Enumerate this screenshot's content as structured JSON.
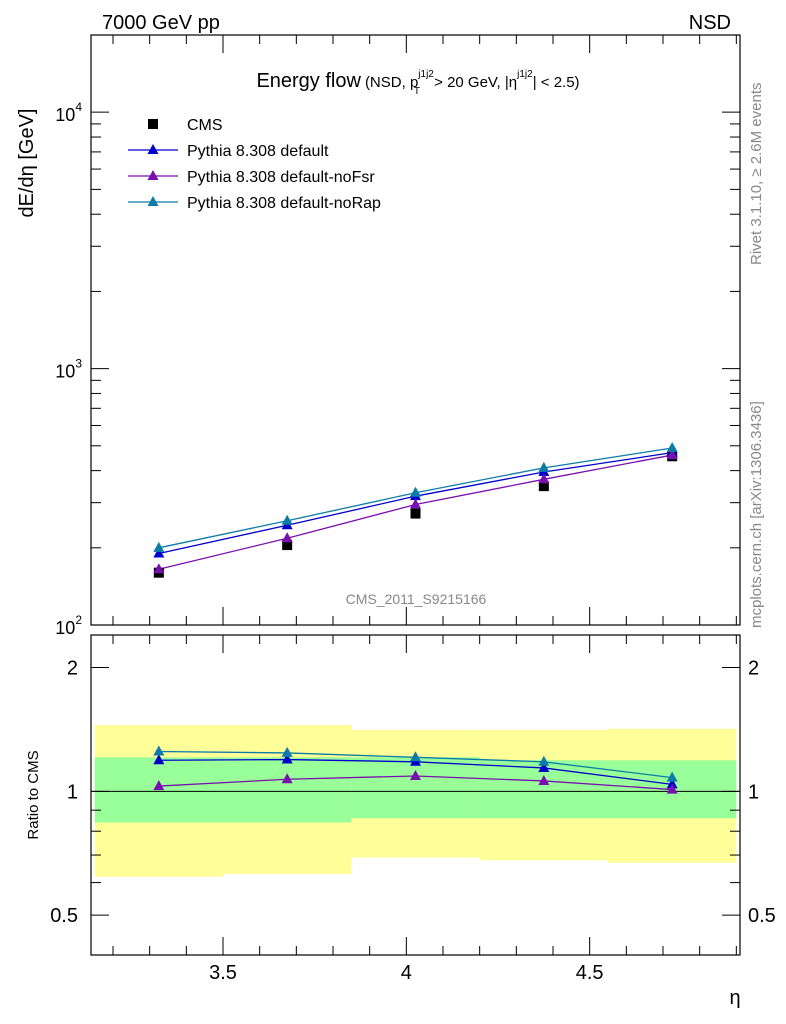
{
  "header": {
    "left": "7000 GeV pp",
    "right": "NSD"
  },
  "side_labels": {
    "top": "Rivet 3.1.10, ≥ 2.6M events",
    "bottom": "mcplots.cern.ch [arXiv:1306.3436]"
  },
  "watermark": "CMS_2011_S9215166",
  "title": {
    "main": "Energy flow",
    "open": "(NSD, p",
    "sup1": "j1j2",
    "sub1": "T",
    "mid": " > 20 GeV, |η",
    "sup2": "j1j2",
    "close": "| < 2.5)"
  },
  "colors": {
    "cms": "#000000",
    "default": "#0000cc",
    "noFsr": "#7a0fb0",
    "noRap": "#0b7ca8",
    "band_outer": "#ffff99",
    "band_inner": "#99ff99"
  },
  "chart_data": {
    "type": "line",
    "x": [
      3.325,
      3.675,
      4.025,
      4.375,
      4.725
    ],
    "xlabel": "η",
    "xlim": [
      3.14,
      4.91
    ],
    "xticks": [
      "3.5",
      "4",
      "4.5"
    ],
    "upper": {
      "ylabel": "dE/dη [GeV]",
      "ylim": [
        100,
        20000
      ],
      "yscale": "log",
      "yticks": [
        {
          "base": "10",
          "exp": "2",
          "v": 100
        },
        {
          "base": "10",
          "exp": "3",
          "v": 1000
        },
        {
          "base": "10",
          "exp": "4",
          "v": 10000
        }
      ],
      "legend_position": "top-left",
      "series": [
        {
          "name": "CMS",
          "marker": "square",
          "values": [
            160,
            205,
            272,
            348,
            455
          ]
        },
        {
          "name": "Pythia 8.308 default",
          "marker": "triangle",
          "values": [
            190,
            245,
            318,
            395,
            470
          ]
        },
        {
          "name": "Pythia 8.308 default-noFsr",
          "marker": "triangle",
          "values": [
            165,
            218,
            295,
            370,
            460
          ]
        },
        {
          "name": "Pythia 8.308 default-noRap",
          "marker": "triangle",
          "values": [
            200,
            255,
            328,
            410,
            490
          ]
        }
      ]
    },
    "lower": {
      "ylabel": "Ratio to CMS",
      "ylim": [
        0.4,
        2.4
      ],
      "yscale": "log",
      "yticks": [
        "0.5",
        "1",
        "2"
      ],
      "bands": [
        {
          "x0": 3.15,
          "x1": 3.5,
          "inner": [
            0.84,
            1.21
          ],
          "outer": [
            0.62,
            1.45
          ]
        },
        {
          "x0": 3.5,
          "x1": 3.85,
          "inner": [
            0.84,
            1.21
          ],
          "outer": [
            0.63,
            1.45
          ]
        },
        {
          "x0": 3.85,
          "x1": 4.2,
          "inner": [
            0.86,
            1.21
          ],
          "outer": [
            0.69,
            1.41
          ]
        },
        {
          "x0": 4.2,
          "x1": 4.55,
          "inner": [
            0.86,
            1.19
          ],
          "outer": [
            0.68,
            1.41
          ]
        },
        {
          "x0": 4.55,
          "x1": 4.9,
          "inner": [
            0.86,
            1.19
          ],
          "outer": [
            0.67,
            1.42
          ]
        }
      ],
      "series": [
        {
          "name": "Pythia 8.308 default",
          "values": [
            1.19,
            1.195,
            1.18,
            1.14,
            1.04
          ]
        },
        {
          "name": "Pythia 8.308 default-noFsr",
          "values": [
            1.03,
            1.07,
            1.09,
            1.06,
            1.01
          ]
        },
        {
          "name": "Pythia 8.308 default-noRap",
          "values": [
            1.25,
            1.24,
            1.21,
            1.18,
            1.08
          ]
        }
      ]
    }
  }
}
